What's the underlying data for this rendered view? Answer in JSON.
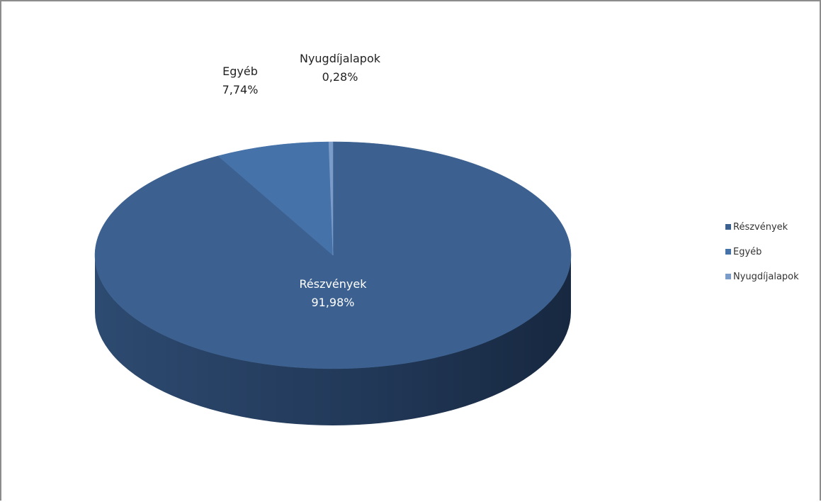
{
  "chart_data": {
    "type": "pie",
    "style": "3d",
    "title": "",
    "categories": [
      "Részvények",
      "Egyéb",
      "Nyugdíjalapok"
    ],
    "values": [
      91.98,
      7.74,
      0.28
    ],
    "value_labels": [
      "91,98%",
      "7,74%",
      "0,28%"
    ],
    "legend": {
      "position": "right",
      "entries": [
        "Részvények",
        "Egyéb",
        "Nyugdíjalapok"
      ]
    },
    "colors": [
      "#3c6190",
      "#4672aa",
      "#7b9bc8"
    ],
    "side_colors": [
      "#1e2f49",
      "#2f4f78",
      "#56739e"
    ]
  }
}
